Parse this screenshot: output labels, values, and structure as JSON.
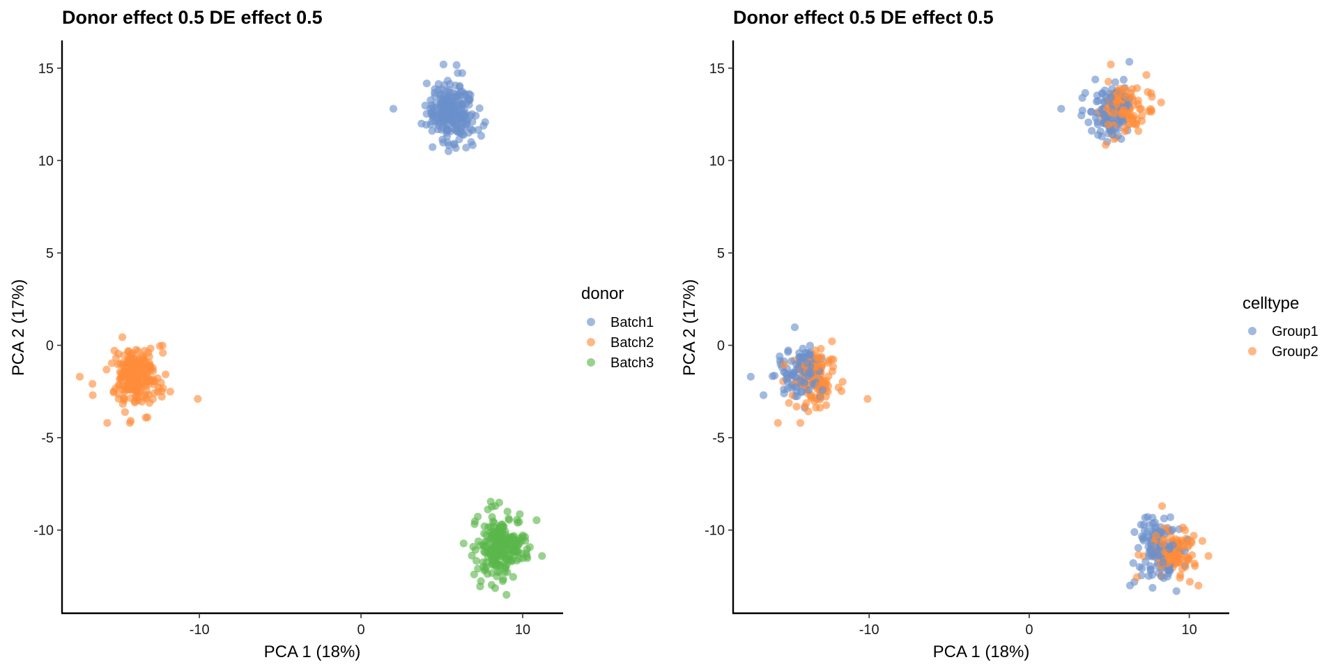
{
  "chart_data": [
    {
      "type": "scatter",
      "title": "Donor effect 0.5 DE effect 0.5",
      "xlabel": "PCA 1 (18%)",
      "ylabel": "PCA 2 (17%)",
      "xlim": [
        -18.5,
        12.5
      ],
      "ylim": [
        -14.5,
        16.5
      ],
      "xticks": [
        -10,
        0,
        10
      ],
      "xtick_labels": [
        "-10",
        "0",
        "10"
      ],
      "yticks": [
        -10,
        -5,
        0,
        5,
        10,
        15
      ],
      "ytick_labels": [
        "-10",
        "-5",
        "0",
        "5",
        "10",
        "15"
      ],
      "legend_title": "donor",
      "legend_position": "right",
      "series": [
        {
          "name": "Batch1",
          "color": "#6A8FCB",
          "clusters": [
            {
              "center": [
                5.6,
                12.7
              ],
              "sd": [
                0.75,
                0.85
              ],
              "n": 220
            }
          ],
          "outliers": [
            [
              2.0,
              12.8
            ],
            [
              5.1,
              15.2
            ],
            [
              6.5,
              10.7
            ]
          ]
        },
        {
          "name": "Batch2",
          "color": "#FF8C3A",
          "clusters": [
            {
              "center": [
                -13.9,
                -1.6
              ],
              "sd": [
                0.75,
                0.8
              ],
              "n": 220
            }
          ],
          "outliers": [
            [
              -17.4,
              -1.7
            ],
            [
              -10.1,
              -2.9
            ],
            [
              -15.7,
              -4.2
            ],
            [
              -14.3,
              -4.2
            ],
            [
              -16.6,
              -2.7
            ]
          ]
        },
        {
          "name": "Batch3",
          "color": "#5BB64B",
          "clusters": [
            {
              "center": [
                8.6,
                -11.0
              ],
              "sd": [
                0.75,
                0.8
              ],
              "n": 220
            }
          ],
          "outliers": [
            [
              11.2,
              -11.4
            ],
            [
              8.3,
              -8.7
            ],
            [
              7.0,
              -12.4
            ],
            [
              9.0,
              -13.5
            ]
          ]
        }
      ]
    },
    {
      "type": "scatter",
      "title": "Donor effect 0.5 DE effect 0.5",
      "xlabel": "PCA 1 (18%)",
      "ylabel": "PCA 2 (17%)",
      "xlim": [
        -18.5,
        12.5
      ],
      "ylim": [
        -14.5,
        16.5
      ],
      "xticks": [
        -10,
        0,
        10
      ],
      "xtick_labels": [
        "-10",
        "0",
        "10"
      ],
      "yticks": [
        -10,
        -5,
        0,
        5,
        10,
        15
      ],
      "ytick_labels": [
        "-10",
        "-5",
        "0",
        "5",
        "10",
        "15"
      ],
      "legend_title": "celltype",
      "legend_position": "right",
      "series": [
        {
          "name": "Group1",
          "color": "#6A8FCB",
          "clusters": [
            {
              "center": [
                5.1,
                12.6
              ],
              "sd": [
                0.7,
                0.8
              ],
              "n": 110
            },
            {
              "center": [
                -14.2,
                -1.5
              ],
              "sd": [
                0.7,
                0.8
              ],
              "n": 110
            },
            {
              "center": [
                8.1,
                -10.9
              ],
              "sd": [
                0.75,
                0.8
              ],
              "n": 110
            }
          ],
          "outliers": [
            [
              2.0,
              12.8
            ],
            [
              -17.4,
              -1.7
            ],
            [
              -16.6,
              -2.7
            ],
            [
              6.3,
              -13.0
            ],
            [
              9.2,
              -13.3
            ]
          ]
        },
        {
          "name": "Group2",
          "color": "#FF8C3A",
          "clusters": [
            {
              "center": [
                6.0,
                12.8
              ],
              "sd": [
                0.7,
                0.8
              ],
              "n": 110
            },
            {
              "center": [
                -13.5,
                -1.7
              ],
              "sd": [
                0.7,
                0.8
              ],
              "n": 110
            },
            {
              "center": [
                9.0,
                -11.1
              ],
              "sd": [
                0.75,
                0.8
              ],
              "n": 110
            }
          ],
          "outliers": [
            [
              5.1,
              15.2
            ],
            [
              -10.1,
              -2.9
            ],
            [
              -15.7,
              -4.2
            ],
            [
              -14.3,
              -4.2
            ],
            [
              11.2,
              -11.4
            ],
            [
              8.3,
              -8.7
            ]
          ]
        }
      ]
    }
  ]
}
